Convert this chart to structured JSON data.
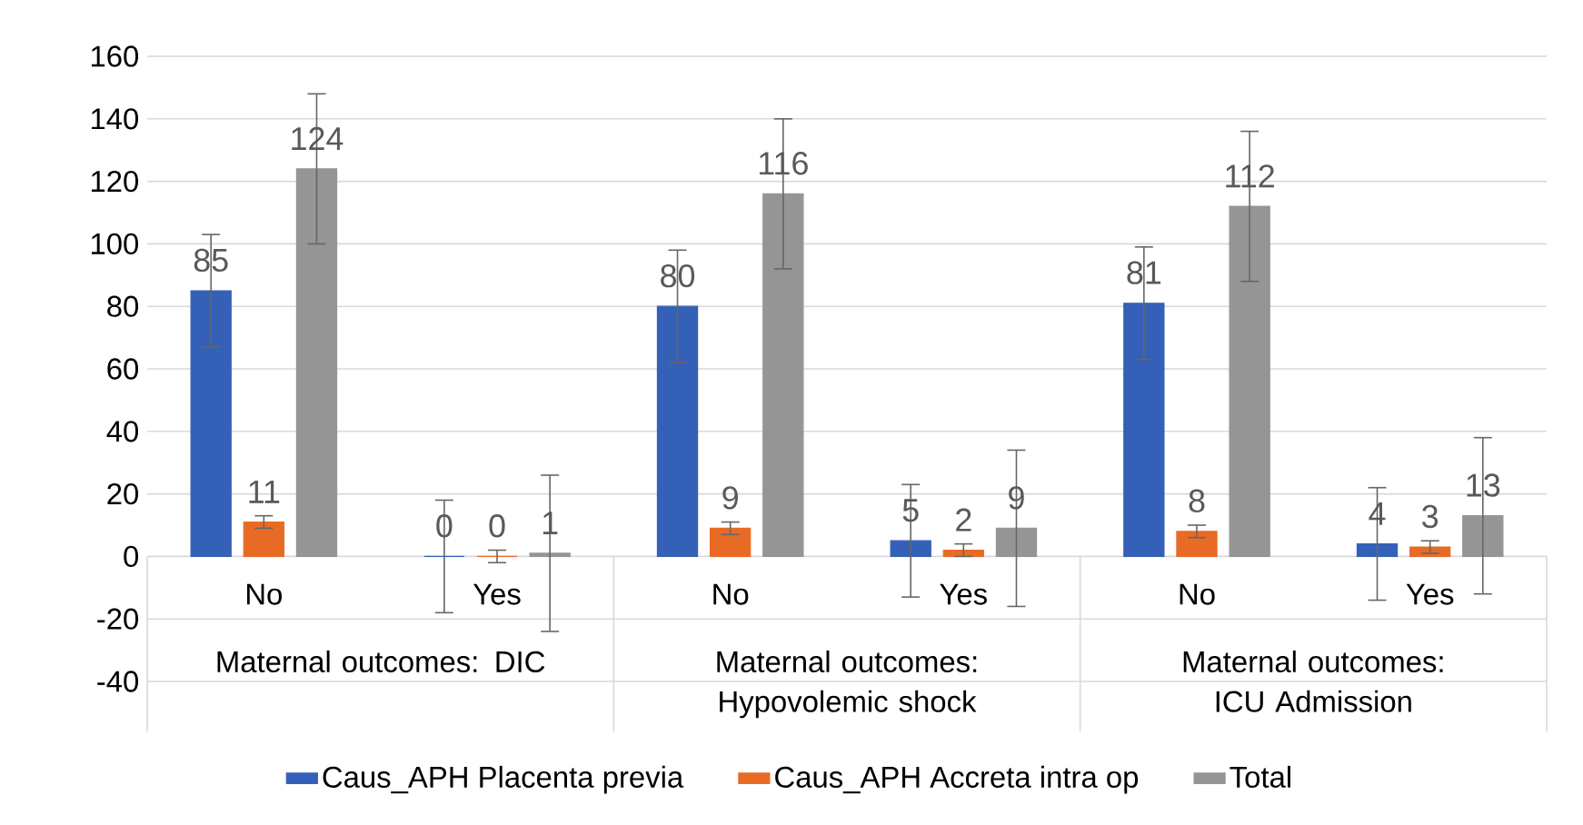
{
  "chart_data": {
    "type": "bar",
    "categories": [
      "No",
      "Yes",
      "No",
      "Yes",
      "No",
      "Yes"
    ],
    "series": [
      {
        "name": "Caus_APH Placenta previa",
        "color": "#3560b8",
        "values": [
          85,
          0,
          80,
          5,
          81,
          4
        ],
        "errors": [
          18,
          18,
          18,
          18,
          18,
          18
        ]
      },
      {
        "name": "Caus_APH Accreta intra op",
        "color": "#e86b25",
        "values": [
          11,
          0,
          9,
          2,
          8,
          3
        ],
        "errors": [
          2,
          2,
          2,
          2,
          2,
          2
        ]
      },
      {
        "name": "Total",
        "color": "#959595",
        "values": [
          124,
          1,
          116,
          9,
          112,
          13
        ],
        "errors": [
          24,
          25,
          24,
          25,
          24,
          25
        ]
      }
    ],
    "ylim": [
      -40,
      160
    ],
    "yticks": [
      -40,
      -20,
      0,
      20,
      40,
      60,
      80,
      100,
      120,
      140,
      160
    ],
    "grid": "y",
    "legend": "bottom",
    "data_labels": true,
    "annotations": [
      "Maternal outcomes: DIC",
      "Maternal outcomes: Hypovolemic shock",
      "Maternal outcomes: ICU Admission"
    ]
  }
}
